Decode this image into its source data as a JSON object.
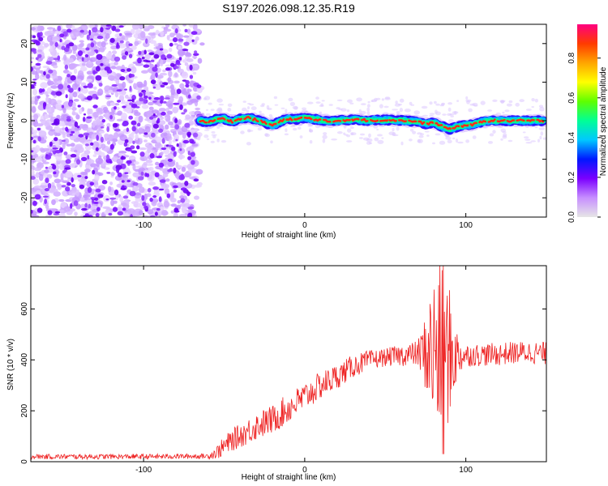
{
  "page_title": "S197.2026.098.12.35.R19",
  "colorbar": {
    "label": "Normalized spectral amplitude",
    "ticks": [
      "0.0",
      "0.2",
      "0.4",
      "0.6",
      "0.8"
    ],
    "colors": [
      "#e6e6e6",
      "#c78fff",
      "#7b00ff",
      "#0018ff",
      "#00c8ff",
      "#00ff96",
      "#5eff00",
      "#ffff00",
      "#ffa500",
      "#ff3b00",
      "#ff0080"
    ]
  },
  "chart_data": [
    {
      "type": "heatmap",
      "title": "S197.2026.098.12.35.R19",
      "xlabel": "Height of straight line (km)",
      "ylabel": "Frequency (Hz)",
      "xlim": [
        -170,
        150
      ],
      "ylim": [
        -25,
        25
      ],
      "x_ticks": [
        -100,
        0,
        100
      ],
      "x_tick_labels": [
        "-100",
        "0",
        "100"
      ],
      "y_ticks": [
        -20,
        -10,
        0,
        10,
        20
      ],
      "y_tick_labels": [
        "-20",
        "-10",
        "0",
        "10",
        "20"
      ],
      "noise_region_x": [
        -170,
        -63
      ],
      "signal_band": {
        "x_start": -65,
        "x_end": 148,
        "frequency_track": [
          [
            -65,
            0
          ],
          [
            -60,
            -0.5
          ],
          [
            -55,
            0.3
          ],
          [
            -50,
            0.5
          ],
          [
            -45,
            -0.2
          ],
          [
            -40,
            0.4
          ],
          [
            -35,
            0.8
          ],
          [
            -30,
            0.2
          ],
          [
            -25,
            -0.5
          ],
          [
            -20,
            -1.2
          ],
          [
            -15,
            -0.2
          ],
          [
            -10,
            0.5
          ],
          [
            -5,
            0.3
          ],
          [
            0,
            0.8
          ],
          [
            5,
            0.4
          ],
          [
            10,
            0.2
          ],
          [
            15,
            -0.3
          ],
          [
            20,
            0.0
          ],
          [
            30,
            0.3
          ],
          [
            40,
            0.1
          ],
          [
            50,
            0.2
          ],
          [
            60,
            0.1
          ],
          [
            70,
            -0.3
          ],
          [
            75,
            -0.8
          ],
          [
            80,
            -0.5
          ],
          [
            85,
            -1.4
          ],
          [
            90,
            -2.2
          ],
          [
            95,
            -1.5
          ],
          [
            100,
            -1.2
          ],
          [
            105,
            -1.0
          ],
          [
            110,
            -0.3
          ],
          [
            115,
            0.0
          ],
          [
            120,
            0.0
          ],
          [
            130,
            0.0
          ],
          [
            140,
            0.0
          ],
          [
            148,
            0.0
          ]
        ]
      }
    },
    {
      "type": "line",
      "xlabel": "Height of straight line (km)",
      "ylabel": "SNR (10 * v/v)",
      "xlim": [
        -170,
        150
      ],
      "ylim": [
        0,
        770
      ],
      "x_ticks": [
        -100,
        0,
        100
      ],
      "x_tick_labels": [
        "-100",
        "0",
        "100"
      ],
      "y_ticks": [
        0,
        200,
        400,
        600
      ],
      "y_tick_labels": [
        "0",
        "200",
        "400",
        "600"
      ],
      "series": [
        {
          "name": "SNR",
          "color": "#ee2222",
          "envelope": [
            [
              -170,
              20
            ],
            [
              -100,
              20
            ],
            [
              -60,
              22
            ],
            [
              -55,
              35
            ],
            [
              -45,
              85
            ],
            [
              -35,
              120
            ],
            [
              -30,
              140
            ],
            [
              -20,
              165
            ],
            [
              -10,
              210
            ],
            [
              0,
              255
            ],
            [
              10,
              300
            ],
            [
              20,
              335
            ],
            [
              30,
              375
            ],
            [
              40,
              398
            ],
            [
              50,
              410
            ],
            [
              60,
              418
            ],
            [
              70,
              425
            ],
            [
              80,
              430
            ],
            [
              90,
              420
            ],
            [
              100,
              418
            ],
            [
              110,
              420
            ],
            [
              120,
              422
            ],
            [
              130,
              428
            ],
            [
              140,
              430
            ],
            [
              150,
              425
            ]
          ],
          "noise_amplitude": [
            [
              -170,
              10
            ],
            [
              -60,
              10
            ],
            [
              -50,
              40
            ],
            [
              -30,
              55
            ],
            [
              -10,
              60
            ],
            [
              10,
              55
            ],
            [
              30,
              45
            ],
            [
              50,
              35
            ],
            [
              70,
              50
            ],
            [
              75,
              150
            ],
            [
              80,
              320
            ],
            [
              85,
              360
            ],
            [
              90,
              260
            ],
            [
              95,
              90
            ],
            [
              100,
              45
            ],
            [
              150,
              45
            ]
          ],
          "peak": [
            86,
            770
          ],
          "dip": [
            86,
            30
          ]
        }
      ]
    }
  ]
}
